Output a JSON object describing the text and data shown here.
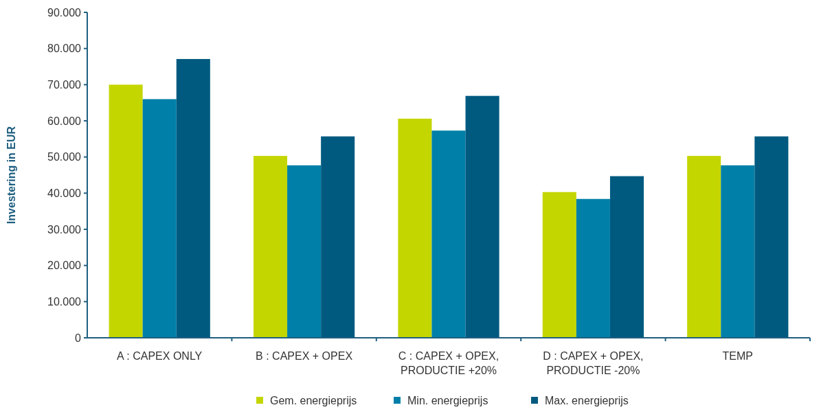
{
  "chart_data": {
    "type": "bar",
    "ylabel": "Investering in EUR",
    "categories": [
      "A : CAPEX ONLY",
      "B : CAPEX + OPEX",
      "C : CAPEX + OPEX,\nPRODUCTIE +20%",
      "D : CAPEX + OPEX,\nPRODUCTIE -20%",
      "TEMP"
    ],
    "series": [
      {
        "name": "Gem. energieprijs",
        "color": "#c4d600",
        "values": [
          70000,
          50300,
          60600,
          40300,
          50300
        ]
      },
      {
        "name": "Min. energieprijs",
        "color": "#0080a8",
        "values": [
          66000,
          47700,
          57300,
          38400,
          47700
        ]
      },
      {
        "name": "Max. energieprijs",
        "color": "#005a80",
        "values": [
          77100,
          55700,
          66900,
          44700,
          55700
        ]
      }
    ],
    "ylim": [
      0,
      90000
    ],
    "yticks": [
      {
        "value": 0,
        "label": "0"
      },
      {
        "value": 10000,
        "label": "10.000"
      },
      {
        "value": 20000,
        "label": "20.000"
      },
      {
        "value": 30000,
        "label": "30.000"
      },
      {
        "value": 40000,
        "label": "40.000"
      },
      {
        "value": 50000,
        "label": "50.000"
      },
      {
        "value": 60000,
        "label": "60.000"
      },
      {
        "value": 70000,
        "label": "70.000"
      },
      {
        "value": 80000,
        "label": "80.000"
      },
      {
        "value": 90000,
        "label": "90.000"
      }
    ],
    "grid": false,
    "legend": "bottom"
  }
}
